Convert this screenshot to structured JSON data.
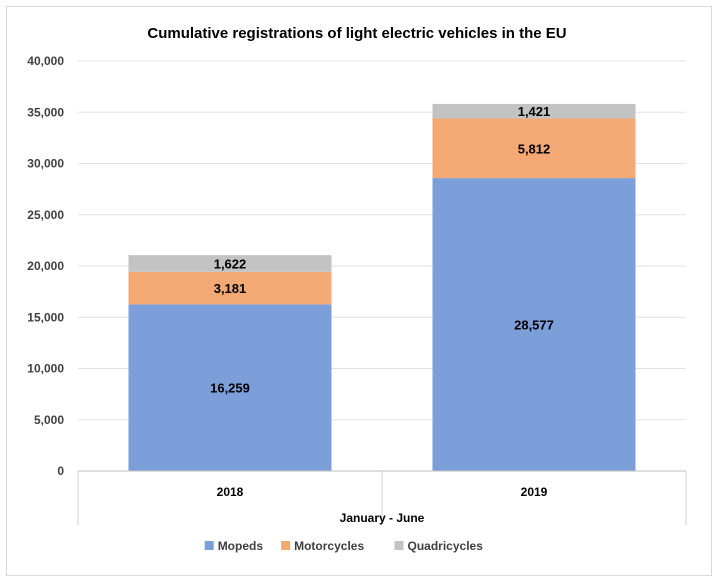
{
  "chart_data": {
    "type": "bar",
    "stacked": true,
    "title": "Cumulative registrations of light electric vehicles in the EU",
    "xlabel": "January - June",
    "ylabel": "",
    "categories": [
      "2018",
      "2019"
    ],
    "ylim": [
      0,
      40000
    ],
    "yticks": [
      0,
      5000,
      10000,
      15000,
      20000,
      25000,
      30000,
      35000,
      40000
    ],
    "ytick_labels": [
      "0",
      "5,000",
      "10,000",
      "15,000",
      "20,000",
      "25,000",
      "30,000",
      "35,000",
      "40,000"
    ],
    "grid": true,
    "legend_position": "bottom",
    "series": [
      {
        "name": "Mopeds",
        "color": "#7d9fd9",
        "values": [
          16259,
          28577
        ],
        "labels": [
          "16,259",
          "28,577"
        ]
      },
      {
        "name": "Motorcycles",
        "color": "#f4a874",
        "values": [
          3181,
          5812
        ],
        "labels": [
          "3,181",
          "5,812"
        ]
      },
      {
        "name": "Quadricycles",
        "color": "#c3c3c3",
        "values": [
          1622,
          1421
        ],
        "labels": [
          "1,622",
          "1,421"
        ]
      }
    ]
  }
}
